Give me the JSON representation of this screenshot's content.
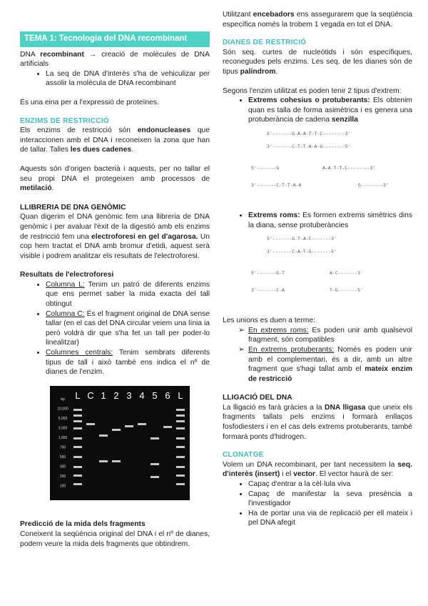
{
  "left": {
    "title": "TEMA 1: Tecnologia del DNA recombinant",
    "intro": [
      "DNA ",
      "recombinant",
      " → creació de molècules de DNA artificials"
    ],
    "intro_bullet": "La seq de DNA d'interès s'ha de vehiculizar per assolir la molècula de DNA recombinant",
    "tool": "És una eina per a l'expressió de proteïnes.",
    "enzymes_heading": "ENZIMS DE RESTRICCIÓ",
    "enzymes_p1": [
      "Els enzims de restricció són ",
      "endonucleases",
      " que interaccionen amb el DNA i reconeixen la zona que han de tallar. Talles ",
      "les dues cadenes",
      "."
    ],
    "enzymes_p2": [
      "Aquests són d'origen bacterià i aquests, per no tallar el seu propi DNA el protegeixen amb processos de ",
      "metilació",
      "."
    ],
    "library_heading": "LLIBRERIA DE DNA GENÒMIC",
    "library_p": [
      "Quan digerim el DNA genòmic fem una llibreria de DNA genòmic i per avaluar l'èxit de la digestió amb els enzims de restricció fem una ",
      "electroforesi en gel d'agarosa.",
      " Un cop hem tractat el DNA amb bromur d'etidi, aquest serà visible i podrem analitzar els resultats de l'electroforesi."
    ],
    "results_heading": "Resultats de l'electroforesi",
    "results": [
      [
        "Columna L:",
        " Tenim un patró de diferents enzims que ens permet saber la mida exacta del tall obtingut"
      ],
      [
        "Columna C:",
        " És el fragment original de DNA sense tallar (en el cas del DNA circular veiem una línia ia però voldrà dir que s'ha fet un tall per poder-lo linealitzar)"
      ],
      [
        "Columnes centrals:",
        " Tenim sembrats diferents tipus de tall i això també ens indica el nº de dianes de l'enzim."
      ]
    ],
    "gel": {
      "lanes": [
        "L",
        "C",
        "1",
        "2",
        "3",
        "4",
        "5",
        "6",
        "L"
      ],
      "ladder": [
        "bp",
        "10,000",
        "5,000",
        "3,000",
        "1,000",
        "700",
        "500",
        "300",
        "200",
        "100"
      ]
    },
    "prediction_heading": "Predicció de la mida dels fragments",
    "prediction_p": "Coneixent la seqüència original del DNA i el nº de dianes, podem veure la mida dels fragments que obtindrem."
  },
  "right": {
    "primers_p": [
      "Utilitzant ",
      "encebadors",
      " ens assegurarem que la seqüència específica només la trobem 1 vegada en tot el DNA."
    ],
    "sites_heading": "DIANES DE RESTRICIÓ",
    "sites_p1": [
      "Són seq. curtes de nucleòtids i són específiques, reconegudes pels enzims. Les seq. de les dianes són de tipus ",
      "palíndrom",
      "."
    ],
    "sites_p2": "Segons l'enzim utilitzat es poden tenir 2 tipus d'extrem:",
    "sticky": [
      "Extrems cohesius o protuberants:",
      " Els obtenim quan es talla de forma asimètrica i es genera una protuberància de cadena ",
      "senzilla"
    ],
    "sticky_diagram": [
      "5'-------G-A-A-T-T-C--------3'",
      "3'-------C-T-T-A-A-G--------5'",
      "5'-------G",
      "A-A-T-T-C--------3'",
      "3'-------C-T-T-A-A",
      "G--------5'"
    ],
    "blunt": [
      "Extrems roms:",
      " Es formen extrems simètrics dins la diana, sense protuberàncies"
    ],
    "blunt_diagram": [
      "5'-------G-T-A-C-------3'",
      "3'-------C-A-T-G-------5'",
      "5'-------G-T",
      "A-C-------3'",
      "3'-------C-A",
      "T-G-------5'"
    ],
    "unions_p": "Les unions es duen a terme:",
    "unions": [
      [
        "En extrems roms:",
        " Es poden unir amb qualsevol fragment, són compatibles"
      ],
      [
        "En extrems protuberants:",
        " Només es poden unir amb el complementari, és a dir, amb un altre fragment que s'hagi tallat amb el ",
        "mateix enzim de restricció"
      ]
    ],
    "ligation_heading": "LLIGACIÓ DEL DNA",
    "ligation_p": [
      "La lligació es farà gràcies a la ",
      "DNA lligasa",
      " que uneix els fragments tallats pels enzims i formarà enllaços fosfodiesters i en el cas dels extrems protuberants, també formarà ponts d'hidrogen."
    ],
    "cloning_heading": "CLONATGE",
    "cloning_p": [
      "Volem un DNA recombinant, per tant necessitem la ",
      "seq. d'interès (insert)",
      " i el ",
      "vector",
      ". El vector haurà de ser:"
    ],
    "cloning_list": [
      "Capaç d'entrar a la cèl·lula viva",
      "Capaç de manifestar la seva presència a l'investigador",
      "Ha de portar una via de replicació per ell mateix i pel DNA afegit"
    ]
  }
}
